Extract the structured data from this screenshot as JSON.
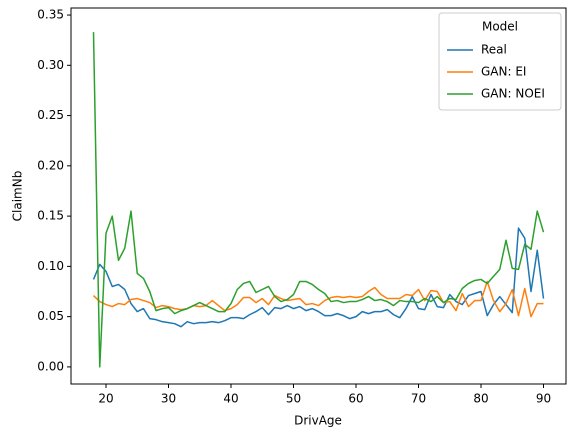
{
  "chart_data": {
    "type": "line",
    "xlabel": "DrivAge",
    "ylabel": "ClaimNb",
    "x": [
      18,
      19,
      20,
      21,
      22,
      23,
      24,
      25,
      26,
      27,
      28,
      29,
      30,
      31,
      32,
      33,
      34,
      35,
      36,
      37,
      38,
      39,
      40,
      41,
      42,
      43,
      44,
      45,
      46,
      47,
      48,
      49,
      50,
      51,
      52,
      53,
      54,
      55,
      56,
      57,
      58,
      59,
      60,
      61,
      62,
      63,
      64,
      65,
      66,
      67,
      68,
      69,
      70,
      71,
      72,
      73,
      74,
      75,
      76,
      77,
      78,
      79,
      80,
      81,
      82,
      83,
      84,
      85,
      86,
      87,
      88,
      89,
      90
    ],
    "series": [
      {
        "name": "Real",
        "color": "#1f77b4",
        "values": [
          0.087,
          0.102,
          0.095,
          0.08,
          0.082,
          0.077,
          0.063,
          0.055,
          0.058,
          0.048,
          0.047,
          0.045,
          0.044,
          0.043,
          0.04,
          0.045,
          0.043,
          0.044,
          0.044,
          0.045,
          0.044,
          0.046,
          0.049,
          0.049,
          0.048,
          0.052,
          0.055,
          0.059,
          0.052,
          0.059,
          0.058,
          0.061,
          0.058,
          0.06,
          0.056,
          0.058,
          0.055,
          0.051,
          0.051,
          0.053,
          0.051,
          0.048,
          0.05,
          0.055,
          0.053,
          0.055,
          0.055,
          0.057,
          0.052,
          0.049,
          0.058,
          0.07,
          0.058,
          0.057,
          0.072,
          0.06,
          0.059,
          0.072,
          0.065,
          0.062,
          0.071,
          0.073,
          0.075,
          0.051,
          0.062,
          0.07,
          0.062,
          0.054,
          0.138,
          0.128,
          0.075,
          0.116,
          0.068
        ]
      },
      {
        "name": "GAN: EI",
        "color": "#ff7f0e",
        "values": [
          0.071,
          0.065,
          0.062,
          0.06,
          0.063,
          0.062,
          0.067,
          0.068,
          0.066,
          0.064,
          0.059,
          0.061,
          0.06,
          0.058,
          0.057,
          0.058,
          0.061,
          0.06,
          0.061,
          0.066,
          0.061,
          0.056,
          0.058,
          0.062,
          0.069,
          0.069,
          0.064,
          0.068,
          0.062,
          0.071,
          0.068,
          0.066,
          0.067,
          0.068,
          0.062,
          0.063,
          0.061,
          0.066,
          0.069,
          0.07,
          0.069,
          0.07,
          0.069,
          0.07,
          0.075,
          0.079,
          0.072,
          0.068,
          0.068,
          0.068,
          0.072,
          0.071,
          0.077,
          0.066,
          0.076,
          0.075,
          0.064,
          0.065,
          0.056,
          0.073,
          0.06,
          0.066,
          0.066,
          0.085,
          0.066,
          0.055,
          0.063,
          0.077,
          0.051,
          0.078,
          0.05,
          0.063,
          0.063
        ]
      },
      {
        "name": "GAN: NOEI",
        "color": "#2ca02c",
        "values": [
          0.333,
          0.0,
          0.133,
          0.15,
          0.106,
          0.118,
          0.155,
          0.093,
          0.088,
          0.075,
          0.056,
          0.058,
          0.059,
          0.053,
          0.056,
          0.058,
          0.061,
          0.064,
          0.061,
          0.058,
          0.055,
          0.055,
          0.063,
          0.077,
          0.083,
          0.085,
          0.074,
          0.077,
          0.08,
          0.07,
          0.065,
          0.067,
          0.072,
          0.085,
          0.085,
          0.082,
          0.077,
          0.073,
          0.065,
          0.066,
          0.064,
          0.065,
          0.065,
          0.067,
          0.07,
          0.066,
          0.067,
          0.065,
          0.061,
          0.066,
          0.065,
          0.065,
          0.064,
          0.068,
          0.065,
          0.07,
          0.064,
          0.068,
          0.067,
          0.078,
          0.083,
          0.086,
          0.087,
          0.083,
          0.09,
          0.097,
          0.126,
          0.098,
          0.097,
          0.122,
          0.117,
          0.155,
          0.134
        ]
      }
    ],
    "xlim": [
      14.4,
      93.6
    ],
    "ylim": [
      -0.017,
      0.357
    ],
    "xticks": [
      20,
      30,
      40,
      50,
      60,
      70,
      80,
      90
    ],
    "yticks": [
      {
        "value": 0,
        "label": "0.00"
      },
      {
        "value": 0.05,
        "label": "0.05"
      },
      {
        "value": 0.1,
        "label": "0.10"
      },
      {
        "value": 0.15,
        "label": "0.15"
      },
      {
        "value": 0.2,
        "label": "0.20"
      },
      {
        "value": 0.25,
        "label": "0.25"
      },
      {
        "value": 0.3,
        "label": "0.30"
      },
      {
        "value": 0.35,
        "label": "0.35"
      }
    ],
    "legend": {
      "title": "Model",
      "position": "upper right"
    }
  }
}
